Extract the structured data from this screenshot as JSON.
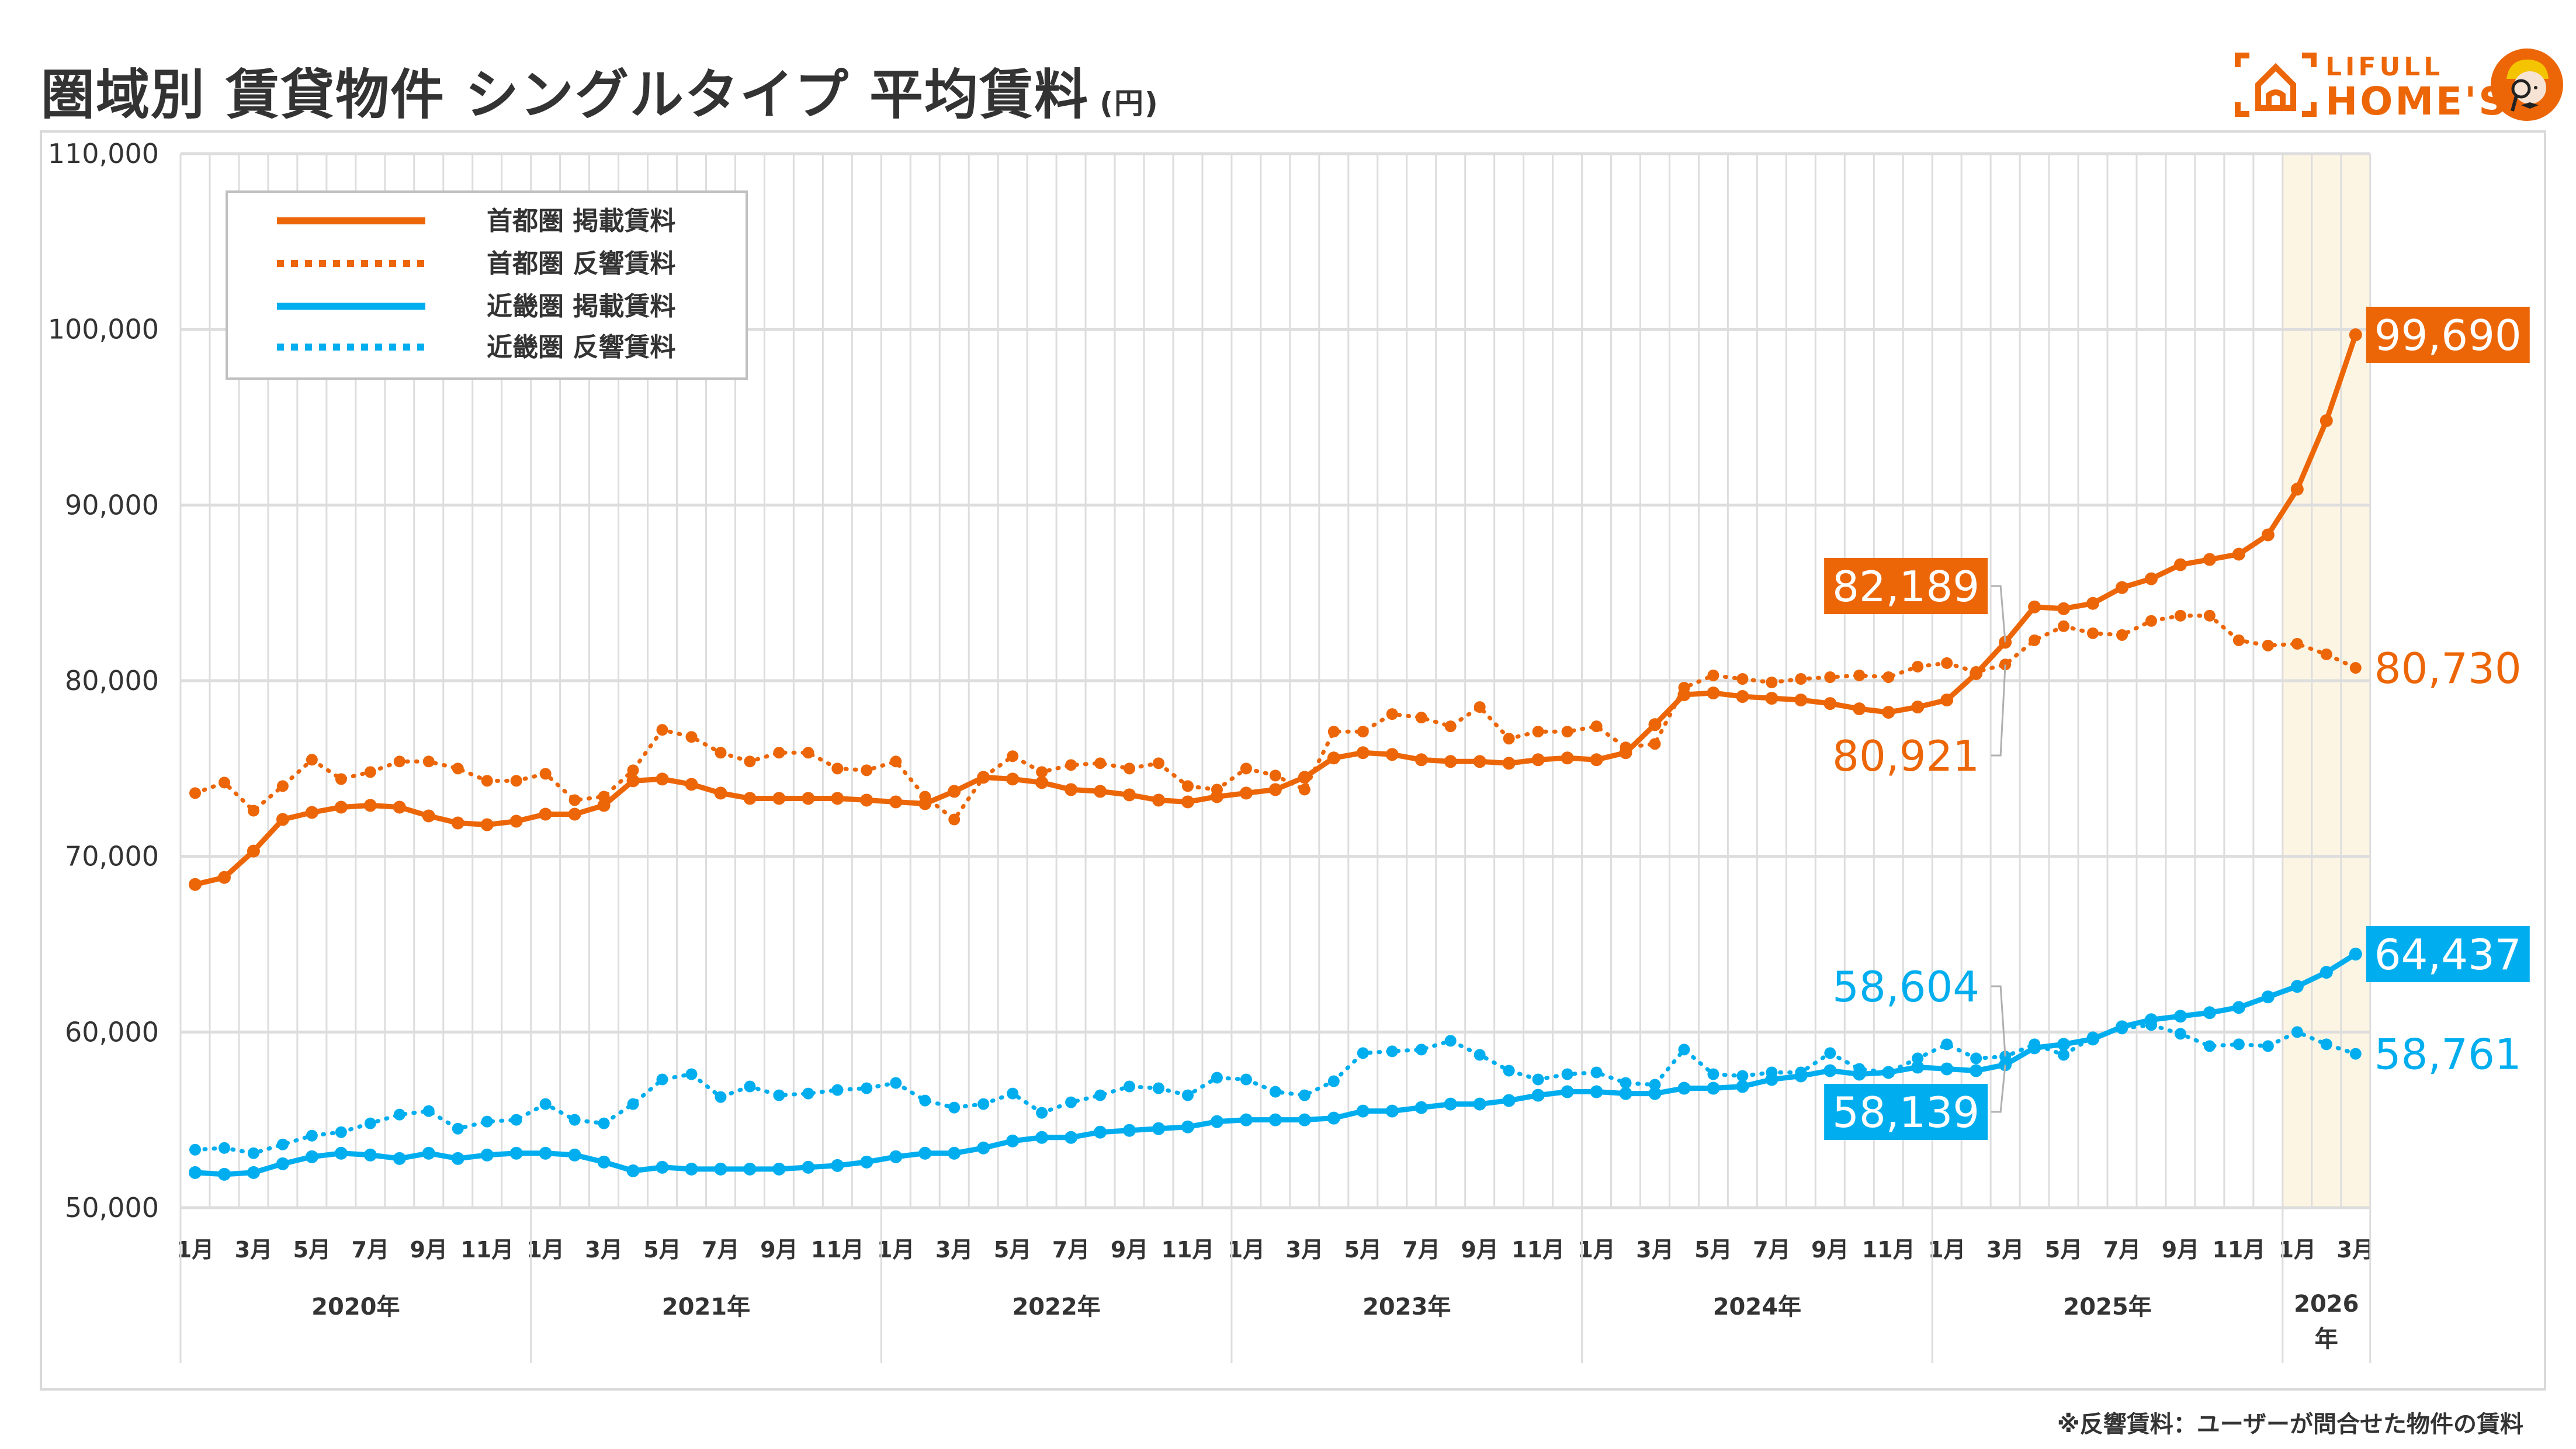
{
  "header": {
    "title": "圏域別 賃貸物件 シングルタイプ 平均賃料",
    "unit": "(円)",
    "logo_line1": "LIFULL",
    "logo_line2": "HOME'S",
    "logo_icon": "house-bracket-icon",
    "mascot_icon": "detective-mascot-icon"
  },
  "footnote": "※反響賃料：ユーザーが問合せた物件の賃料",
  "colors": {
    "orange": "#EC6608",
    "blue": "#00AEEF",
    "highlight": "#FDF5E4",
    "grid": "#DDDDDD",
    "text": "#333333"
  },
  "chart_data": {
    "type": "line",
    "title": "圏域別 賃貸物件 シングルタイプ 平均賃料 (円)",
    "xlabel": "",
    "ylabel": "円",
    "ylim": [
      50000,
      110000
    ],
    "yticks": [
      50000,
      60000,
      70000,
      80000,
      90000,
      100000,
      110000
    ],
    "ytick_labels": [
      "50,000",
      "60,000",
      "70,000",
      "80,000",
      "90,000",
      "100,000",
      "110,000"
    ],
    "grid": "both",
    "legend_position": "top-left",
    "highlight_range": [
      "2026-01",
      "2026-03"
    ],
    "month_tick_labels": [
      "1月",
      "3月",
      "5月",
      "7月",
      "9月",
      "11月"
    ],
    "years": [
      {
        "label": "2020年",
        "months": 12
      },
      {
        "label": "2021年",
        "months": 12
      },
      {
        "label": "2022年",
        "months": 12
      },
      {
        "label": "2023年",
        "months": 12
      },
      {
        "label": "2024年",
        "months": 12
      },
      {
        "label": "2025年",
        "months": 12
      },
      {
        "label": "2026",
        "label2": "年",
        "months": 3
      }
    ],
    "x_start": "2020-01",
    "x_end": "2026-03",
    "series": [
      {
        "name": "首都圏 掲載賃料",
        "color": "#EC6608",
        "style": "solid",
        "values": [
          68400,
          68800,
          70300,
          72100,
          72500,
          72800,
          72900,
          72800,
          72300,
          71900,
          71800,
          72000,
          72400,
          72400,
          72900,
          74300,
          74400,
          74100,
          73600,
          73300,
          73300,
          73300,
          73300,
          73200,
          73100,
          73000,
          73700,
          74500,
          74400,
          74200,
          73800,
          73700,
          73500,
          73200,
          73100,
          73400,
          73600,
          73800,
          74500,
          75600,
          75900,
          75800,
          75500,
          75400,
          75400,
          75300,
          75500,
          75600,
          75500,
          75900,
          77500,
          79200,
          79300,
          79100,
          79000,
          78900,
          78700,
          78400,
          78200,
          78500,
          78900,
          80400,
          82189,
          84200,
          84100,
          84400,
          85300,
          85800,
          86600,
          86900,
          87200,
          88300,
          90900,
          94800,
          99690
        ]
      },
      {
        "name": "首都圏 反響賃料",
        "color": "#EC6608",
        "style": "dotted",
        "values": [
          73600,
          74200,
          72600,
          74000,
          75500,
          74400,
          74800,
          75400,
          75400,
          75000,
          74300,
          74300,
          74700,
          73200,
          73400,
          74900,
          77200,
          76800,
          75900,
          75400,
          75900,
          75900,
          75000,
          74900,
          75400,
          73400,
          72100,
          74500,
          75700,
          74800,
          75200,
          75300,
          75000,
          75300,
          74000,
          73800,
          75000,
          74600,
          73800,
          77100,
          77100,
          78100,
          77900,
          77400,
          78500,
          76700,
          77100,
          77100,
          77400,
          76200,
          76400,
          79600,
          80300,
          80100,
          79900,
          80100,
          80200,
          80300,
          80200,
          80800,
          81000,
          80500,
          80921,
          82300,
          83100,
          82700,
          82600,
          83400,
          83700,
          83700,
          82300,
          82000,
          82100,
          81500,
          80730
        ]
      },
      {
        "name": "近畿圏 掲載賃料",
        "color": "#00AEEF",
        "style": "solid",
        "values": [
          52000,
          51900,
          52000,
          52500,
          52900,
          53100,
          53000,
          52800,
          53100,
          52800,
          53000,
          53100,
          53100,
          53000,
          52600,
          52100,
          52300,
          52200,
          52200,
          52200,
          52200,
          52300,
          52400,
          52600,
          52900,
          53100,
          53100,
          53400,
          53800,
          54000,
          54000,
          54300,
          54400,
          54500,
          54600,
          54900,
          55000,
          55000,
          55000,
          55100,
          55500,
          55500,
          55700,
          55900,
          55900,
          56100,
          56400,
          56600,
          56600,
          56500,
          56500,
          56800,
          56800,
          56900,
          57300,
          57500,
          57800,
          57600,
          57700,
          58000,
          57900,
          57800,
          58139,
          59100,
          59300,
          59600,
          60300,
          60700,
          60900,
          61100,
          61400,
          62000,
          62600,
          63400,
          64437
        ]
      },
      {
        "name": "近畿圏 反響賃料",
        "color": "#00AEEF",
        "style": "dotted",
        "values": [
          53300,
          53400,
          53100,
          53600,
          54100,
          54300,
          54800,
          55300,
          55500,
          54500,
          54900,
          55000,
          55900,
          55000,
          54800,
          55900,
          57300,
          57600,
          56300,
          56900,
          56400,
          56500,
          56700,
          56800,
          57100,
          56100,
          55700,
          55900,
          56500,
          55400,
          56000,
          56400,
          56900,
          56800,
          56400,
          57400,
          57300,
          56600,
          56400,
          57200,
          58800,
          58900,
          59000,
          59500,
          58700,
          57800,
          57300,
          57600,
          57700,
          57100,
          57000,
          59000,
          57600,
          57500,
          57700,
          57700,
          58800,
          57900,
          57700,
          58500,
          59300,
          58500,
          58604,
          59300,
          58700,
          59700,
          60200,
          60400,
          59900,
          59200,
          59300,
          59200,
          60000,
          59300,
          58761
        ]
      }
    ],
    "annotations": [
      {
        "series": 0,
        "month_index": 74,
        "text": "99,690",
        "boxed": true
      },
      {
        "series": 1,
        "month_index": 74,
        "text": "80,730",
        "boxed": false
      },
      {
        "series": 0,
        "month_index": 62,
        "text": "82,189",
        "boxed": true
      },
      {
        "series": 1,
        "month_index": 62,
        "text": "80,921",
        "boxed": false
      },
      {
        "series": 2,
        "month_index": 74,
        "text": "64,437",
        "boxed": true
      },
      {
        "series": 3,
        "month_index": 74,
        "text": "58,761",
        "boxed": false
      },
      {
        "series": 3,
        "month_index": 62,
        "text": "58,604",
        "boxed": false
      },
      {
        "series": 2,
        "month_index": 62,
        "text": "58,139",
        "boxed": true
      }
    ]
  }
}
